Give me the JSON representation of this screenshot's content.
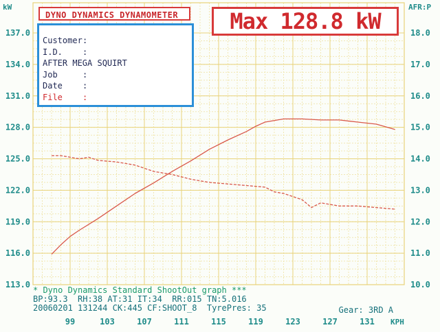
{
  "header": {
    "title": "DYNO DYNAMICS DYNAMOMETER",
    "max_label": "Max 128.8 kW"
  },
  "info": [
    {
      "key": "Customer",
      "value": ""
    },
    {
      "key": "I.D.",
      "value": ""
    },
    {
      "key": "",
      "value": "AFTER MEGA SQUIRT"
    },
    {
      "key": "Job",
      "value": ""
    },
    {
      "key": "Date",
      "value": ""
    },
    {
      "key": "File",
      "value": ""
    }
  ],
  "footer": {
    "line1": "* Dyno Dynamics Standard ShootOut graph ***",
    "line2": "BP:93.3  RH:38 AT:31 IT:34  RR:015 TN:5.016",
    "line3": "20060201 131244 CK:445 CF:SHOOT_8  TyrePres: 35",
    "gear": "Gear: 3RD A"
  },
  "colors": {
    "axis_text": "#1f8c8a",
    "grid_major": "#e8d27a",
    "grid_minor": "#f1e7b2",
    "curve": "#d9584a",
    "title_red": "#d83a3a",
    "info_border": "#2b8fd8"
  },
  "chart_data": {
    "type": "line",
    "left_axis": {
      "label": "kW",
      "ylim": [
        113.0,
        137.0
      ],
      "ticks": [
        "113.0",
        "116.0",
        "119.0",
        "122.0",
        "125.0",
        "128.0",
        "131.0",
        "134.0",
        "137.0"
      ]
    },
    "right_axis": {
      "label": "AFR:P",
      "ylim": [
        10.0,
        18.0
      ],
      "ticks": [
        "10.0",
        "11.0",
        "12.0",
        "13.0",
        "14.0",
        "15.0",
        "16.0",
        "17.0",
        "18.0"
      ]
    },
    "x_axis": {
      "label": "KPH",
      "xlim": [
        95,
        135
      ],
      "ticks": [
        "99",
        "103",
        "107",
        "111",
        "115",
        "119",
        "123",
        "127",
        "131"
      ]
    },
    "grid": true,
    "series": [
      {
        "axis": "left",
        "style": "solid",
        "x": [
          97,
          98,
          99,
          100,
          102,
          104,
          106,
          108,
          110,
          112,
          114,
          116,
          118,
          119,
          120,
          122,
          123,
          124,
          126,
          128,
          130,
          132,
          134
        ],
        "values": [
          115.9,
          116.8,
          117.6,
          118.2,
          119.3,
          120.5,
          121.7,
          122.7,
          123.8,
          124.8,
          125.9,
          126.8,
          127.6,
          128.1,
          128.5,
          128.8,
          128.8,
          128.8,
          128.7,
          128.7,
          128.5,
          128.3,
          127.8
        ]
      },
      {
        "axis": "right",
        "style": "dashed",
        "x": [
          97,
          98,
          100,
          101,
          102,
          104,
          106,
          108,
          110,
          112,
          114,
          116,
          118,
          120,
          121,
          122,
          124,
          125,
          126,
          128,
          130,
          132,
          134
        ],
        "values": [
          14.1,
          14.1,
          14.0,
          14.05,
          13.95,
          13.9,
          13.8,
          13.6,
          13.5,
          13.35,
          13.25,
          13.2,
          13.15,
          13.1,
          12.95,
          12.9,
          12.7,
          12.45,
          12.6,
          12.5,
          12.5,
          12.45,
          12.4
        ]
      }
    ]
  }
}
